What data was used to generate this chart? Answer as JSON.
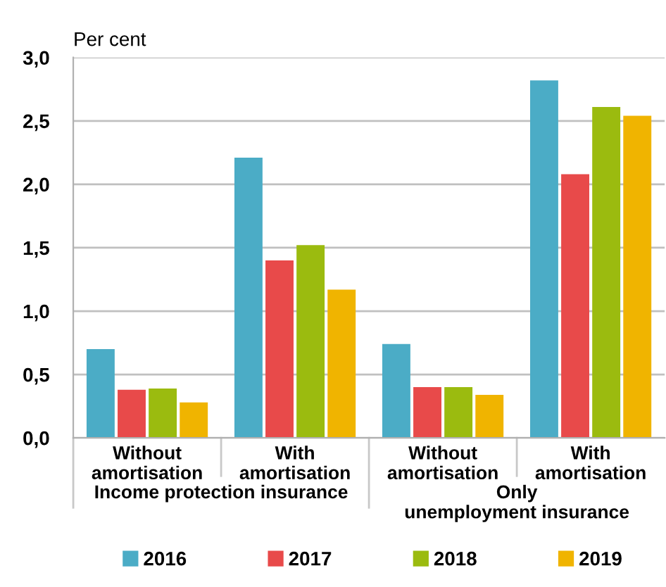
{
  "chart_data": {
    "type": "bar",
    "ylabel": "Per cent",
    "categories": [
      "Without amortisation",
      "With amortisation",
      "Without amortisation",
      "With amortisation"
    ],
    "series": [
      {
        "name": "2016",
        "color": "#4bacc6",
        "values": [
          0.7,
          2.21,
          0.74,
          2.82
        ]
      },
      {
        "name": "2017",
        "color": "#e84a4a",
        "values": [
          0.38,
          1.4,
          0.4,
          2.08
        ]
      },
      {
        "name": "2018",
        "color": "#9bbb0f",
        "values": [
          0.39,
          1.52,
          0.4,
          2.61
        ]
      },
      {
        "name": "2019",
        "color": "#f0b400",
        "values": [
          0.28,
          1.17,
          0.34,
          2.54
        ]
      }
    ],
    "annotations": [
      "Income protection insurance",
      "Only unemployment insurance"
    ],
    "ylim": [
      0,
      3
    ],
    "yticks": [
      {
        "value": 0,
        "label": "0,0"
      },
      {
        "value": 0.5,
        "label": "0,5"
      },
      {
        "value": 1,
        "label": "1,0"
      },
      {
        "value": 1.5,
        "label": "1,5"
      },
      {
        "value": 2,
        "label": "2,0"
      },
      {
        "value": 2.5,
        "label": "2,5"
      },
      {
        "value": 3,
        "label": "3,0"
      }
    ],
    "grid": "y",
    "legend": "bottom"
  }
}
